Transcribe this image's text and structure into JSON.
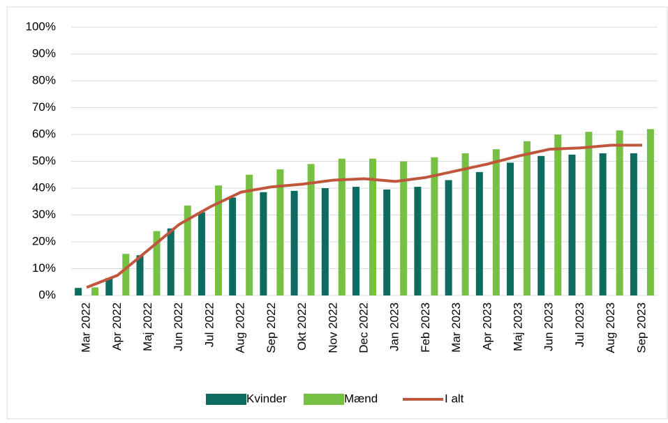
{
  "chart_data": {
    "type": "bar_line",
    "categories": [
      "Mar 2022",
      "Apr 2022",
      "Maj 2022",
      "Jun 2022",
      "Jul 2022",
      "Aug 2022",
      "Sep 2022",
      "Okt 2022",
      "Nov 2022",
      "Dec 2022",
      "Jan 2023",
      "Feb 2023",
      "Mar 2023",
      "Apr 2023",
      "Maj 2023",
      "Jun 2023",
      "Jul 2023",
      "Aug 2023",
      "Sep 2023"
    ],
    "series": [
      {
        "name": "Kvinder",
        "type": "bar",
        "color": "#0e6b60",
        "values": [
          2.8,
          6.5,
          15,
          25,
          31,
          36.5,
          38.5,
          39,
          40,
          40.5,
          39.5,
          40.5,
          43,
          46,
          49.5,
          52,
          52.5,
          53,
          53
        ]
      },
      {
        "name": "Mænd",
        "type": "bar",
        "color": "#76c043",
        "values": [
          3,
          15.5,
          24,
          33.5,
          41,
          45,
          47,
          49,
          51,
          51,
          50,
          51.5,
          53,
          54.5,
          57.5,
          60,
          61,
          61.5,
          62
        ]
      },
      {
        "name": "I alt",
        "type": "line",
        "color": "#c0563b",
        "values": [
          3,
          7.5,
          17,
          26.5,
          33,
          38.5,
          40.5,
          41.5,
          43,
          43.5,
          42.5,
          44,
          46.5,
          49,
          52,
          54.5,
          55,
          56,
          56
        ]
      }
    ],
    "ylim": [
      0,
      100
    ],
    "yticks": [
      {
        "value": 0,
        "label": "0%"
      },
      {
        "value": 10,
        "label": "10%"
      },
      {
        "value": 20,
        "label": "20%"
      },
      {
        "value": 30,
        "label": "30%"
      },
      {
        "value": 40,
        "label": "40%"
      },
      {
        "value": 50,
        "label": "50%"
      },
      {
        "value": 60,
        "label": "60%"
      },
      {
        "value": 70,
        "label": "70%"
      },
      {
        "value": 80,
        "label": "80%"
      },
      {
        "value": 90,
        "label": "90%"
      },
      {
        "value": 100,
        "label": "100%"
      }
    ],
    "grid": true,
    "legend": "bottom"
  }
}
